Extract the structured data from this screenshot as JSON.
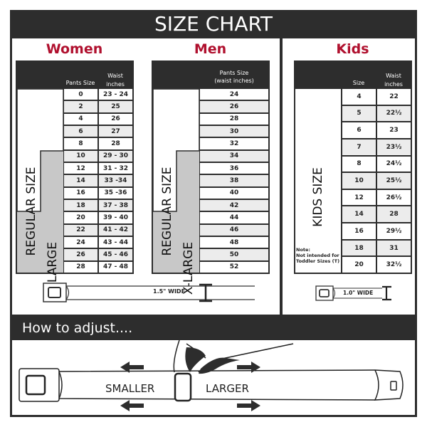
{
  "title": "SIZE CHART",
  "women": {
    "heading": "Women",
    "col_pants": "Pants Size",
    "col_waist_line1": "Waist",
    "col_waist_line2": "inches",
    "regular_label": "REGULAR SIZE",
    "xlarge_label": "X-LARGE",
    "rows": [
      {
        "size": "0",
        "waist": "23 - 24"
      },
      {
        "size": "2",
        "waist": "25"
      },
      {
        "size": "4",
        "waist": "26"
      },
      {
        "size": "6",
        "waist": "27"
      },
      {
        "size": "8",
        "waist": "28"
      },
      {
        "size": "10",
        "waist": "29 - 30"
      },
      {
        "size": "12",
        "waist": "31 - 32"
      },
      {
        "size": "14",
        "waist": "33 -34"
      },
      {
        "size": "16",
        "waist": "35 -36"
      },
      {
        "size": "18",
        "waist": "37 - 38"
      },
      {
        "size": "20",
        "waist": "39 - 40"
      },
      {
        "size": "22",
        "waist": "41 - 42"
      },
      {
        "size": "24",
        "waist": "43 - 44"
      },
      {
        "size": "26",
        "waist": "45 - 46"
      },
      {
        "size": "28",
        "waist": "47 - 48"
      }
    ]
  },
  "men": {
    "heading": "Men",
    "col_line1": "Pants Size",
    "col_line2": "(waist inches)",
    "regular_label": "REGULAR SIZE",
    "xlarge_label": "X-LARGE",
    "rows": [
      "24",
      "26",
      "28",
      "30",
      "32",
      "34",
      "36",
      "38",
      "40",
      "42",
      "44",
      "46",
      "48",
      "50",
      "52"
    ]
  },
  "adult_belt_width": "1.5\" WIDE",
  "kids": {
    "heading": "Kids",
    "col_size": "Size",
    "col_waist_line1": "Waist",
    "col_waist_line2": "inches",
    "label": "KIDS SIZE",
    "note_line1": "Note:",
    "note_line2": "Not intended for",
    "note_line3": "Toddler Sizes (T)",
    "rows": [
      {
        "size": "4",
        "waist": "22"
      },
      {
        "size": "5",
        "waist": "22½"
      },
      {
        "size": "6",
        "waist": "23"
      },
      {
        "size": "7",
        "waist": "23½"
      },
      {
        "size": "8",
        "waist": "24½"
      },
      {
        "size": "10",
        "waist": "25½"
      },
      {
        "size": "12",
        "waist": "26½"
      },
      {
        "size": "14",
        "waist": "28"
      },
      {
        "size": "16",
        "waist": "29½"
      },
      {
        "size": "18",
        "waist": "31"
      },
      {
        "size": "20",
        "waist": "32½"
      }
    ],
    "belt_width": "1.0\" WIDE"
  },
  "adjust": {
    "heading": "How to adjust....",
    "smaller": "SMALLER",
    "larger": "LARGER"
  },
  "colors": {
    "dark": "#2d2d2d",
    "accent": "#b0102e",
    "xlarge_fill": "#c8c8c8",
    "alt_row": "#ececec"
  }
}
